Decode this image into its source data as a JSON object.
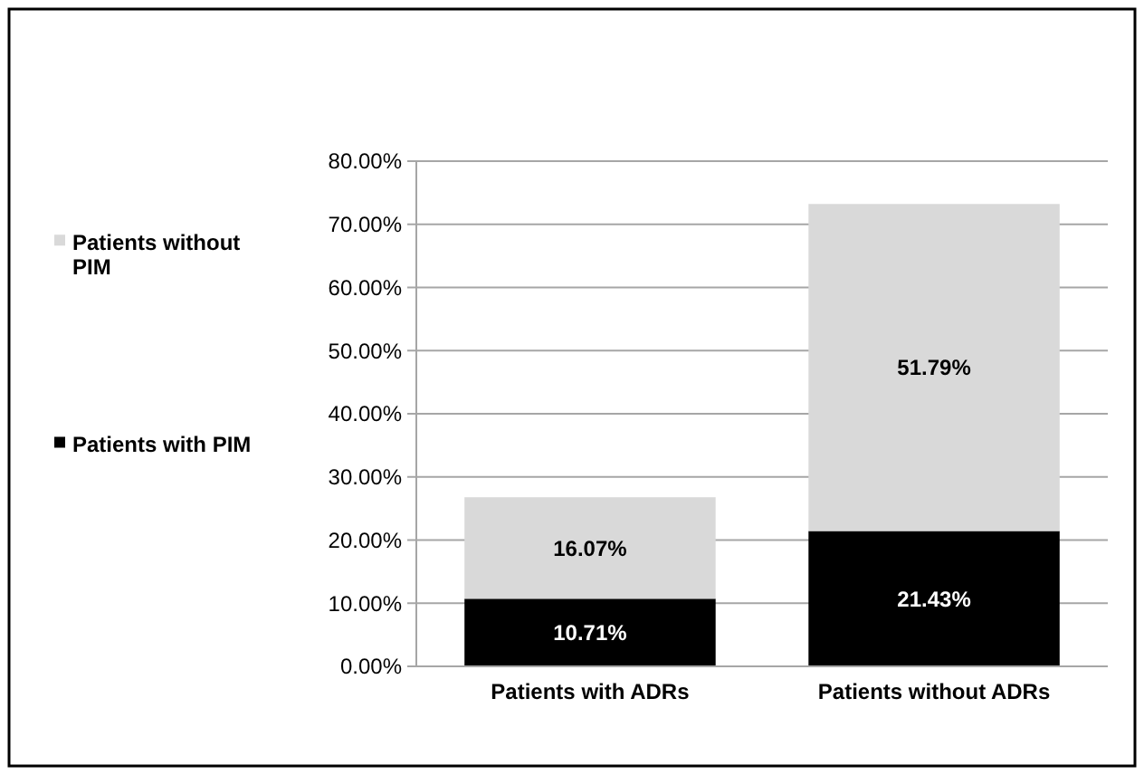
{
  "chart_data": {
    "type": "bar",
    "stacked": true,
    "categories": [
      "Patients with ADRs",
      "Patients without ADRs"
    ],
    "series": [
      {
        "name": "Patients with PIM",
        "color": "#000000",
        "values": [
          10.71,
          21.43
        ],
        "value_labels": [
          "10.71%",
          "21.43%"
        ]
      },
      {
        "name": "Patients without PIM",
        "color": "#d9d9d9",
        "values": [
          16.07,
          51.79
        ],
        "value_labels": [
          "16.07%",
          "51.79%"
        ]
      }
    ],
    "ylim": [
      0,
      80
    ],
    "yticks": [
      {
        "value": 0,
        "label": "0.00%"
      },
      {
        "value": 10,
        "label": "10.00%"
      },
      {
        "value": 20,
        "label": "20.00%"
      },
      {
        "value": 30,
        "label": "30.00%"
      },
      {
        "value": 40,
        "label": "40.00%"
      },
      {
        "value": 50,
        "label": "50.00%"
      },
      {
        "value": 60,
        "label": "60.00%"
      },
      {
        "value": 70,
        "label": "70.00%"
      },
      {
        "value": 80,
        "label": "80.00%"
      }
    ],
    "grid": "y",
    "legend": "left"
  }
}
